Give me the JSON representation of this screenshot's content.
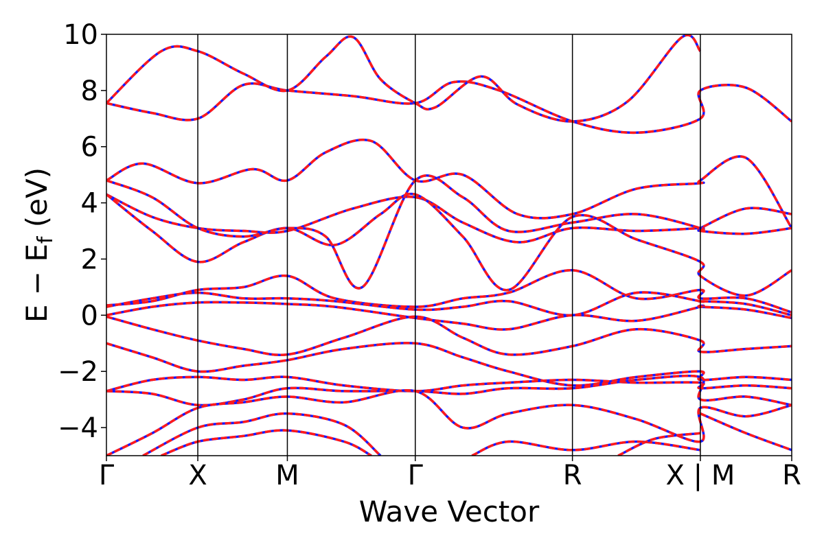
{
  "chart_data": {
    "type": "line",
    "xlabel": "Wave Vector",
    "ylabel": "E − E",
    "ylabel_sub": "f",
    "ylabel_unit": " (eV)",
    "ylim": [
      -5,
      10
    ],
    "xlim": [
      0,
      7.5
    ],
    "yticks": [
      {
        "value": -4,
        "label": "−4"
      },
      {
        "value": -2,
        "label": "−2"
      },
      {
        "value": 0,
        "label": "0"
      },
      {
        "value": 2,
        "label": "2"
      },
      {
        "value": 4,
        "label": "4"
      },
      {
        "value": 6,
        "label": "6"
      },
      {
        "value": 8,
        "label": "8"
      },
      {
        "value": 10,
        "label": "10"
      }
    ],
    "kpoints": [
      {
        "x": 0.0,
        "label": "Γ"
      },
      {
        "x": 1.0,
        "label": "X"
      },
      {
        "x": 1.98,
        "label": "M"
      },
      {
        "x": 3.38,
        "label": "Γ"
      },
      {
        "x": 5.1,
        "label": "R"
      },
      {
        "x": 6.5,
        "label": "X | M"
      },
      {
        "x": 7.5,
        "label": "R"
      }
    ],
    "series_colors": {
      "band_line": "#ff1a1a",
      "band_dash": "#1a1aff"
    },
    "grid": false,
    "bands": [
      [
        [
          0,
          7.55
        ],
        [
          0.5,
          7.2
        ],
        [
          1.0,
          7.0
        ],
        [
          1.5,
          8.2
        ],
        [
          1.98,
          8.0
        ],
        [
          2.7,
          7.8
        ],
        [
          3.38,
          7.55
        ],
        [
          3.8,
          8.3
        ],
        [
          4.3,
          8.0
        ],
        [
          5.1,
          6.9
        ],
        [
          5.8,
          6.5
        ],
        [
          6.5,
          7.0
        ],
        [
          6.5,
          8.0
        ],
        [
          7.0,
          8.1
        ],
        [
          7.5,
          6.9
        ]
      ],
      [
        [
          0,
          7.55
        ],
        [
          0.6,
          9.4
        ],
        [
          1.0,
          9.4
        ],
        [
          1.5,
          8.6
        ],
        [
          1.98,
          8.0
        ],
        [
          2.4,
          9.2
        ],
        [
          2.7,
          9.9
        ],
        [
          3.0,
          8.4
        ],
        [
          3.38,
          7.55
        ],
        [
          3.6,
          7.4
        ],
        [
          4.1,
          8.5
        ],
        [
          4.5,
          7.5
        ],
        [
          5.1,
          6.9
        ],
        [
          5.7,
          7.6
        ],
        [
          6.3,
          9.9
        ],
        [
          6.5,
          9.4
        ]
      ],
      [
        [
          0,
          4.8
        ],
        [
          0.4,
          5.4
        ],
        [
          1.0,
          4.7
        ],
        [
          1.6,
          5.2
        ],
        [
          1.98,
          4.8
        ],
        [
          2.4,
          5.8
        ],
        [
          2.9,
          6.2
        ],
        [
          3.38,
          4.8
        ],
        [
          3.9,
          5.0
        ],
        [
          4.5,
          3.6
        ],
        [
          5.1,
          3.6
        ],
        [
          5.8,
          4.5
        ],
        [
          6.5,
          4.7
        ],
        [
          6.5,
          4.8
        ],
        [
          7.0,
          5.6
        ],
        [
          7.5,
          3.1
        ]
      ],
      [
        [
          0,
          4.3
        ],
        [
          0.5,
          3.5
        ],
        [
          1.0,
          3.1
        ],
        [
          1.5,
          3.0
        ],
        [
          1.98,
          3.0
        ],
        [
          2.7,
          3.8
        ],
        [
          3.38,
          4.2
        ],
        [
          3.9,
          3.3
        ],
        [
          4.5,
          2.6
        ],
        [
          5.1,
          3.1
        ],
        [
          5.8,
          3.0
        ],
        [
          6.5,
          3.1
        ],
        [
          6.5,
          3.1
        ],
        [
          7.0,
          3.8
        ],
        [
          7.5,
          3.6
        ]
      ],
      [
        [
          0,
          4.3
        ],
        [
          0.5,
          3.0
        ],
        [
          1.0,
          1.9
        ],
        [
          1.5,
          2.6
        ],
        [
          1.98,
          3.1
        ],
        [
          2.5,
          2.5
        ],
        [
          3.0,
          3.6
        ],
        [
          3.38,
          4.3
        ],
        [
          3.9,
          2.8
        ],
        [
          4.4,
          0.9
        ],
        [
          5.1,
          3.5
        ],
        [
          5.8,
          2.7
        ],
        [
          6.5,
          1.9
        ],
        [
          6.5,
          1.4
        ],
        [
          7.0,
          0.7
        ],
        [
          7.5,
          1.6
        ]
      ],
      [
        [
          0,
          4.8
        ],
        [
          0.5,
          4.2
        ],
        [
          1.0,
          3.1
        ],
        [
          1.5,
          2.8
        ],
        [
          1.98,
          3.1
        ],
        [
          2.4,
          2.8
        ],
        [
          2.8,
          1.0
        ],
        [
          3.38,
          4.8
        ],
        [
          3.9,
          4.2
        ],
        [
          4.4,
          3.0
        ],
        [
          5.1,
          3.3
        ],
        [
          5.8,
          3.6
        ],
        [
          6.5,
          3.1
        ],
        [
          6.5,
          3.0
        ],
        [
          7.0,
          2.9
        ],
        [
          7.5,
          3.1
        ]
      ],
      [
        [
          0,
          0.35
        ],
        [
          0.5,
          0.5
        ],
        [
          1.0,
          0.9
        ],
        [
          1.5,
          1.0
        ],
        [
          1.98,
          1.4
        ],
        [
          2.5,
          0.6
        ],
        [
          3.38,
          0.3
        ],
        [
          3.9,
          0.6
        ],
        [
          4.4,
          0.8
        ],
        [
          5.1,
          1.6
        ],
        [
          5.8,
          0.6
        ],
        [
          6.5,
          0.9
        ],
        [
          6.5,
          0.6
        ],
        [
          7.0,
          0.6
        ],
        [
          7.5,
          0.1
        ]
      ],
      [
        [
          0,
          0.3
        ],
        [
          0.5,
          0.6
        ],
        [
          1.0,
          0.8
        ],
        [
          1.5,
          0.6
        ],
        [
          1.98,
          0.6
        ],
        [
          2.5,
          0.5
        ],
        [
          3.38,
          0.2
        ],
        [
          3.9,
          0.3
        ],
        [
          4.4,
          0.5
        ],
        [
          5.1,
          0.0
        ],
        [
          5.8,
          0.8
        ],
        [
          6.5,
          0.5
        ],
        [
          6.5,
          0.5
        ],
        [
          7.0,
          0.4
        ],
        [
          7.5,
          0.0
        ]
      ],
      [
        [
          0,
          0.0
        ],
        [
          0.5,
          0.3
        ],
        [
          1.0,
          0.45
        ],
        [
          1.5,
          0.45
        ],
        [
          1.98,
          0.4
        ],
        [
          2.5,
          0.3
        ],
        [
          3.38,
          -0.1
        ],
        [
          3.9,
          -0.3
        ],
        [
          4.4,
          -0.5
        ],
        [
          5.1,
          0.0
        ],
        [
          5.8,
          -0.2
        ],
        [
          6.5,
          0.3
        ],
        [
          6.5,
          0.3
        ],
        [
          7.0,
          0.2
        ],
        [
          7.5,
          -0.1
        ]
      ],
      [
        [
          0,
          -0.05
        ],
        [
          0.5,
          -0.5
        ],
        [
          1.0,
          -0.9
        ],
        [
          1.5,
          -1.2
        ],
        [
          1.98,
          -1.4
        ],
        [
          2.6,
          -0.8
        ],
        [
          3.38,
          -0.05
        ],
        [
          3.9,
          -0.8
        ],
        [
          4.4,
          -1.4
        ],
        [
          5.1,
          -1.1
        ],
        [
          5.8,
          -0.5
        ],
        [
          6.5,
          -0.9
        ],
        [
          6.5,
          -1.3
        ],
        [
          7.0,
          -1.2
        ],
        [
          7.5,
          -1.1
        ]
      ],
      [
        [
          0,
          -1.0
        ],
        [
          0.5,
          -1.5
        ],
        [
          1.0,
          -2.0
        ],
        [
          1.5,
          -1.8
        ],
        [
          1.98,
          -1.6
        ],
        [
          2.6,
          -1.2
        ],
        [
          3.38,
          -1.0
        ],
        [
          3.9,
          -1.5
        ],
        [
          4.4,
          -2.0
        ],
        [
          5.1,
          -2.5
        ],
        [
          5.8,
          -2.2
        ],
        [
          6.5,
          -2.0
        ],
        [
          6.5,
          -2.3
        ],
        [
          7.0,
          -2.2
        ],
        [
          7.5,
          -2.3
        ]
      ],
      [
        [
          0,
          -2.7
        ],
        [
          0.5,
          -2.3
        ],
        [
          1.0,
          -2.2
        ],
        [
          1.5,
          -2.3
        ],
        [
          1.98,
          -2.2
        ],
        [
          2.6,
          -2.5
        ],
        [
          3.38,
          -2.7
        ],
        [
          3.9,
          -2.5
        ],
        [
          4.4,
          -2.4
        ],
        [
          5.1,
          -2.3
        ],
        [
          5.8,
          -2.4
        ],
        [
          6.5,
          -2.4
        ],
        [
          6.5,
          -2.6
        ],
        [
          7.0,
          -2.5
        ],
        [
          7.5,
          -2.6
        ]
      ],
      [
        [
          0,
          -2.7
        ],
        [
          0.5,
          -2.8
        ],
        [
          1.0,
          -3.2
        ],
        [
          1.5,
          -3.0
        ],
        [
          1.98,
          -2.6
        ],
        [
          2.6,
          -2.7
        ],
        [
          3.38,
          -2.7
        ],
        [
          3.9,
          -2.8
        ],
        [
          4.4,
          -2.6
        ],
        [
          5.1,
          -2.6
        ],
        [
          5.8,
          -2.3
        ],
        [
          6.5,
          -2.2
        ],
        [
          6.5,
          -3.0
        ],
        [
          7.0,
          -2.9
        ],
        [
          7.5,
          -3.2
        ]
      ],
      [
        [
          0,
          -5.0
        ],
        [
          0.5,
          -4.2
        ],
        [
          1.0,
          -3.3
        ],
        [
          1.5,
          -3.1
        ],
        [
          1.98,
          -2.9
        ],
        [
          2.6,
          -3.1
        ],
        [
          3.38,
          -2.7
        ],
        [
          3.9,
          -4.0
        ],
        [
          4.4,
          -3.5
        ],
        [
          5.1,
          -3.2
        ],
        [
          5.8,
          -3.7
        ],
        [
          6.5,
          -4.5
        ],
        [
          6.5,
          -3.3
        ],
        [
          7.0,
          -3.6
        ],
        [
          7.5,
          -3.2
        ]
      ],
      [
        [
          0.4,
          -5.0
        ],
        [
          1.0,
          -4.0
        ],
        [
          1.5,
          -3.8
        ],
        [
          1.98,
          -3.5
        ],
        [
          2.6,
          -3.9
        ],
        [
          3.0,
          -5.0
        ]
      ],
      [
        [
          0.6,
          -5.0
        ],
        [
          1.0,
          -4.5
        ],
        [
          1.5,
          -4.3
        ],
        [
          1.98,
          -4.1
        ],
        [
          2.6,
          -4.5
        ],
        [
          2.9,
          -5.0
        ]
      ],
      [
        [
          4.0,
          -5.0
        ],
        [
          4.4,
          -4.5
        ],
        [
          5.1,
          -4.8
        ],
        [
          5.8,
          -4.5
        ],
        [
          6.5,
          -4.8
        ]
      ],
      [
        [
          5.6,
          -5.0
        ],
        [
          6.0,
          -4.4
        ],
        [
          6.5,
          -4.2
        ]
      ],
      [
        [
          6.5,
          -3.5
        ],
        [
          7.0,
          -4.2
        ],
        [
          7.5,
          -4.8
        ]
      ]
    ]
  }
}
